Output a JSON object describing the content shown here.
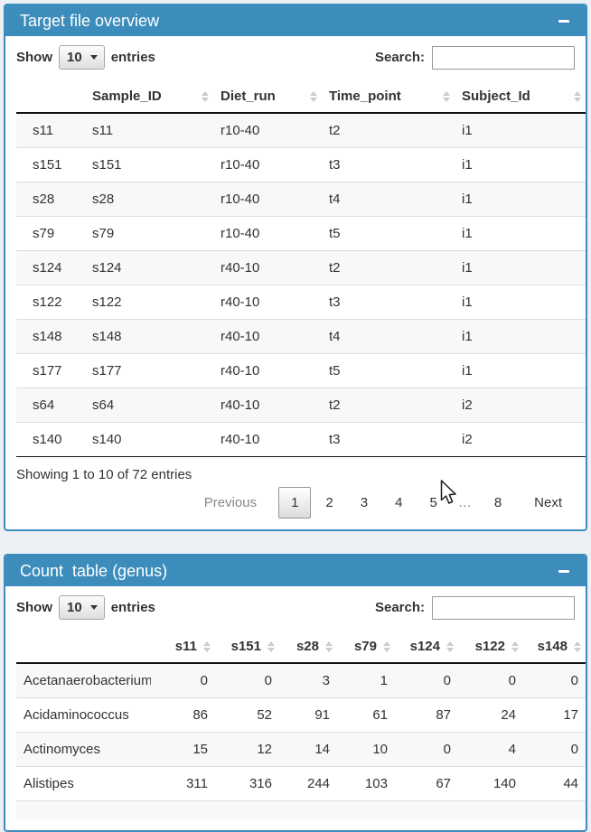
{
  "colors": {
    "accent": "#3c8dbc",
    "page_background": "#ecf0f5"
  },
  "panels": [
    {
      "title": "Target file overview",
      "controls": {
        "show_label": "Show",
        "page_length": "10",
        "entries_label": "entries",
        "search_label": "Search:",
        "search_value": ""
      },
      "table": {
        "columns": [
          "",
          "Sample_ID",
          "Diet_run",
          "Time_point",
          "Subject_Id"
        ],
        "rows": [
          [
            "s11",
            "s11",
            "r10-40",
            "t2",
            "i1"
          ],
          [
            "s151",
            "s151",
            "r10-40",
            "t3",
            "i1"
          ],
          [
            "s28",
            "s28",
            "r10-40",
            "t4",
            "i1"
          ],
          [
            "s79",
            "s79",
            "r10-40",
            "t5",
            "i1"
          ],
          [
            "s124",
            "s124",
            "r40-10",
            "t2",
            "i1"
          ],
          [
            "s122",
            "s122",
            "r40-10",
            "t3",
            "i1"
          ],
          [
            "s148",
            "s148",
            "r40-10",
            "t4",
            "i1"
          ],
          [
            "s177",
            "s177",
            "r40-10",
            "t5",
            "i1"
          ],
          [
            "s64",
            "s64",
            "r40-10",
            "t2",
            "i2"
          ],
          [
            "s140",
            "s140",
            "r40-10",
            "t3",
            "i2"
          ]
        ]
      },
      "info": "Showing 1 to 10 of 72 entries",
      "pagination": {
        "previous": "Previous",
        "pages": [
          "1",
          "2",
          "3",
          "4",
          "5",
          "…",
          "8"
        ],
        "current": "1",
        "next": "Next"
      }
    },
    {
      "title": "Count  table (genus)",
      "controls": {
        "show_label": "Show",
        "page_length": "10",
        "entries_label": "entries",
        "search_label": "Search:",
        "search_value": ""
      },
      "table": {
        "columns": [
          "",
          "s11",
          "s151",
          "s28",
          "s79",
          "s124",
          "s122",
          "s148"
        ],
        "rows": [
          [
            "Acetanaerobacterium",
            "0",
            "0",
            "3",
            "1",
            "0",
            "0",
            "0"
          ],
          [
            "Acidaminococcus",
            "86",
            "52",
            "91",
            "61",
            "87",
            "24",
            "17"
          ],
          [
            "Actinomyces",
            "15",
            "12",
            "14",
            "10",
            "0",
            "4",
            "0"
          ],
          [
            "Alistipes",
            "311",
            "316",
            "244",
            "103",
            "67",
            "140",
            "44"
          ]
        ]
      }
    }
  ]
}
